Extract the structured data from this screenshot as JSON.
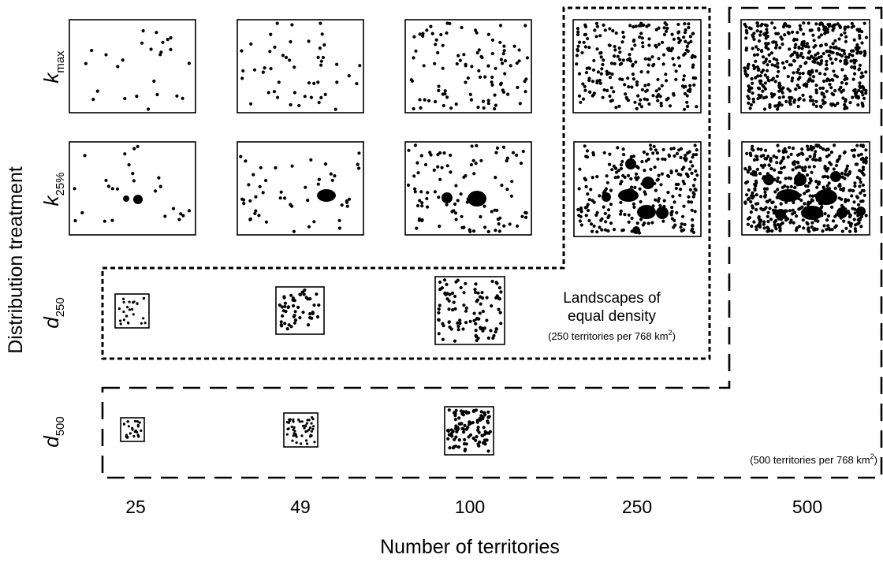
{
  "x_axis": {
    "title": "Number of territories",
    "ticks": [
      "25",
      "49",
      "100",
      "250",
      "500"
    ]
  },
  "y_axis": {
    "title": "Distribution treatment",
    "rows": [
      {
        "base": "k",
        "sub": "max"
      },
      {
        "base": "k",
        "sub": "25%"
      },
      {
        "base": "d",
        "sub": "250"
      },
      {
        "base": "d",
        "sub": "500"
      }
    ]
  },
  "annotations": {
    "equal_density_title_line1": "Landscapes of",
    "equal_density_title_line2": "equal density",
    "equal_density_250_note": "(250 territories per 768 km",
    "equal_density_500_note": "(500 territories per 768 km",
    "superscript": "2",
    "closing_paren": ")"
  },
  "panels": [
    {
      "row": "k_max",
      "territories": 25
    },
    {
      "row": "k_max",
      "territories": 49
    },
    {
      "row": "k_max",
      "territories": 100
    },
    {
      "row": "k_max",
      "territories": 250
    },
    {
      "row": "k_max",
      "territories": 500
    },
    {
      "row": "k_25%",
      "territories": 25
    },
    {
      "row": "k_25%",
      "territories": 49
    },
    {
      "row": "k_25%",
      "territories": 100
    },
    {
      "row": "k_25%",
      "territories": 250
    },
    {
      "row": "k_25%",
      "territories": 500
    },
    {
      "row": "d_250",
      "territories": 25
    },
    {
      "row": "d_250",
      "territories": 49
    },
    {
      "row": "d_250",
      "territories": 100
    },
    {
      "row": "d_500",
      "territories": 25
    },
    {
      "row": "d_500",
      "territories": 49
    },
    {
      "row": "d_500",
      "territories": 100
    }
  ]
}
